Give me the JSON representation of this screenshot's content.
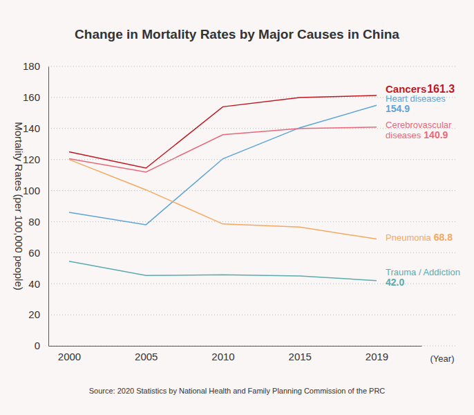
{
  "chart_data": {
    "type": "line",
    "title": "Change in Mortality Rates by Major Causes in China",
    "ylabel": "Mortality Rates (per 100,000 people)",
    "xlabel": "(Year)",
    "annotations": [
      "Source: 2020 Statistics by National Health and Family Planning Commission of the PRC"
    ],
    "categories": [
      "2000",
      "2005",
      "2010",
      "2015",
      "2019"
    ],
    "series": [
      {
        "name": "Cancers",
        "color": "#c0161f",
        "values": [
          125,
          114.5,
          154,
          160,
          161.3
        ],
        "value_labels": [
          null,
          null,
          null,
          null,
          "161.3"
        ]
      },
      {
        "name": "Heart diseases",
        "color": "#5ba4d6",
        "values": [
          86,
          78,
          120.5,
          140.5,
          154.9
        ],
        "value_labels": [
          null,
          null,
          null,
          null,
          "154.9"
        ]
      },
      {
        "name": "Cerebrovascular diseases",
        "color": "#e8677a",
        "values": [
          120.5,
          112,
          136,
          140,
          140.9
        ],
        "value_labels": [
          null,
          null,
          null,
          null,
          "140.9"
        ]
      },
      {
        "name": "Pneumonia",
        "color": "#f5a85c",
        "values": [
          120,
          100.5,
          78.5,
          76.5,
          68.8
        ],
        "value_labels": [
          null,
          null,
          null,
          null,
          "68.8"
        ]
      },
      {
        "name": "Trauma / Addiction",
        "color": "#5aabad",
        "values": [
          54.5,
          45.3,
          45.8,
          45,
          42.0
        ],
        "value_labels": [
          null,
          null,
          null,
          null,
          "42.0"
        ]
      }
    ],
    "ylim": [
      0,
      180
    ],
    "yticks": [
      0,
      20,
      40,
      60,
      80,
      100,
      120,
      140,
      160,
      180
    ],
    "grid": true
  }
}
